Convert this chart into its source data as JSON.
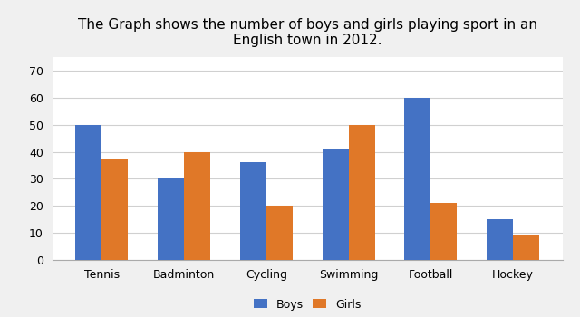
{
  "title": "The Graph shows the number of boys and girls playing sport in an\nEnglish town in 2012.",
  "categories": [
    "Tennis",
    "Badminton",
    "Cycling",
    "Swimming",
    "Football",
    "Hockey"
  ],
  "boys": [
    50,
    30,
    36,
    41,
    60,
    15
  ],
  "girls": [
    37,
    40,
    20,
    50,
    21,
    9
  ],
  "boys_color": "#4472C4",
  "girls_color": "#E07828",
  "ylim": [
    0,
    75
  ],
  "yticks": [
    0,
    10,
    20,
    30,
    40,
    50,
    60,
    70
  ],
  "bar_width": 0.32,
  "legend_labels": [
    "Boys",
    "Girls"
  ],
  "background_color": "#ffffff",
  "outer_bg_color": "#f0f0f0",
  "grid_color": "#d0d0d0",
  "title_fontsize": 11,
  "tick_fontsize": 9,
  "legend_fontsize": 9
}
